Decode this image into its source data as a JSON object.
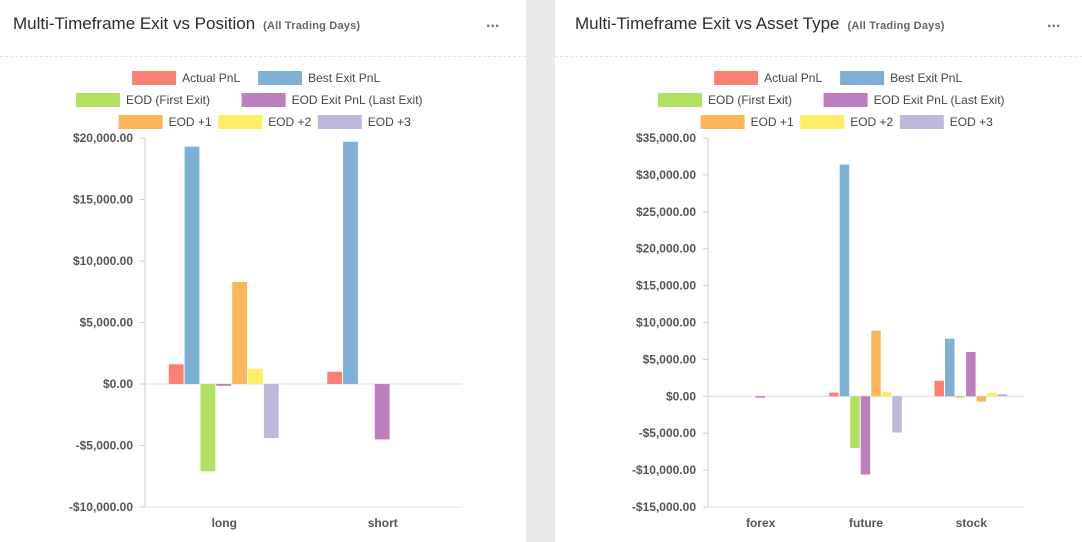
{
  "panels": [
    {
      "title": "Multi-Timeframe Exit vs Position",
      "subtitle": "(All Trading Days)",
      "menu_icon": "more-horizontal-icon",
      "menu_label": "...",
      "chart_data": {
        "type": "bar",
        "categories": [
          "long",
          "short"
        ],
        "ylim": [
          -10000,
          20000
        ],
        "yticks": [
          -10000,
          -5000,
          0,
          5000,
          10000,
          15000,
          20000
        ],
        "ytick_labels": [
          "-$10,000.00",
          "-$5,000.00",
          "$0.00",
          "$5,000.00",
          "$10,000.00",
          "$15,000.00",
          "$20,000.00"
        ],
        "legend_position": "top-center",
        "series": [
          {
            "name": "Actual PnL",
            "color": "#fa8072",
            "values": [
              1600,
              1000
            ]
          },
          {
            "name": "Best Exit PnL",
            "color": "#7eb0d5",
            "values": [
              19300,
              19700
            ]
          },
          {
            "name": "EOD (First Exit)",
            "color": "#b2e061",
            "values": [
              -7100,
              0
            ]
          },
          {
            "name": "EOD Exit PnL (Last Exit)",
            "color": "#bd7ebe",
            "values": [
              -150,
              -4500
            ]
          },
          {
            "name": "EOD +1",
            "color": "#ffb55a",
            "values": [
              8300,
              0
            ]
          },
          {
            "name": "EOD +2",
            "color": "#ffee65",
            "values": [
              1200,
              0
            ]
          },
          {
            "name": "EOD +3",
            "color": "#beb9db",
            "values": [
              -4400,
              0
            ]
          }
        ]
      }
    },
    {
      "title": "Multi-Timeframe Exit vs Asset Type",
      "subtitle": "(All Trading Days)",
      "menu_icon": "more-horizontal-icon",
      "menu_label": "...",
      "chart_data": {
        "type": "bar",
        "categories": [
          "forex",
          "future",
          "stock"
        ],
        "ylim": [
          -15000,
          35000
        ],
        "yticks": [
          -15000,
          -10000,
          -5000,
          0,
          5000,
          10000,
          15000,
          20000,
          25000,
          30000,
          35000
        ],
        "ytick_labels": [
          "-$15,000.00",
          "-$10,000.00",
          "-$5,000.00",
          "$0.00",
          "$5,000.00",
          "$10,000.00",
          "$15,000.00",
          "$20,000.00",
          "$25,000.00",
          "$30,000.00",
          "$35,000.00"
        ],
        "legend_position": "top-center",
        "series": [
          {
            "name": "Actual PnL",
            "color": "#fa8072",
            "values": [
              0,
              500,
              2100
            ]
          },
          {
            "name": "Best Exit PnL",
            "color": "#7eb0d5",
            "values": [
              0,
              31400,
              7800
            ]
          },
          {
            "name": "EOD (First Exit)",
            "color": "#b2e061",
            "values": [
              0,
              -7000,
              -200
            ]
          },
          {
            "name": "EOD Exit PnL (Last Exit)",
            "color": "#bd7ebe",
            "values": [
              -100,
              -10600,
              6000
            ]
          },
          {
            "name": "EOD +1",
            "color": "#ffb55a",
            "values": [
              0,
              8900,
              -700
            ]
          },
          {
            "name": "EOD +2",
            "color": "#ffee65",
            "values": [
              0,
              600,
              500
            ]
          },
          {
            "name": "EOD +3",
            "color": "#beb9db",
            "values": [
              0,
              -4900,
              300
            ]
          }
        ]
      }
    }
  ]
}
